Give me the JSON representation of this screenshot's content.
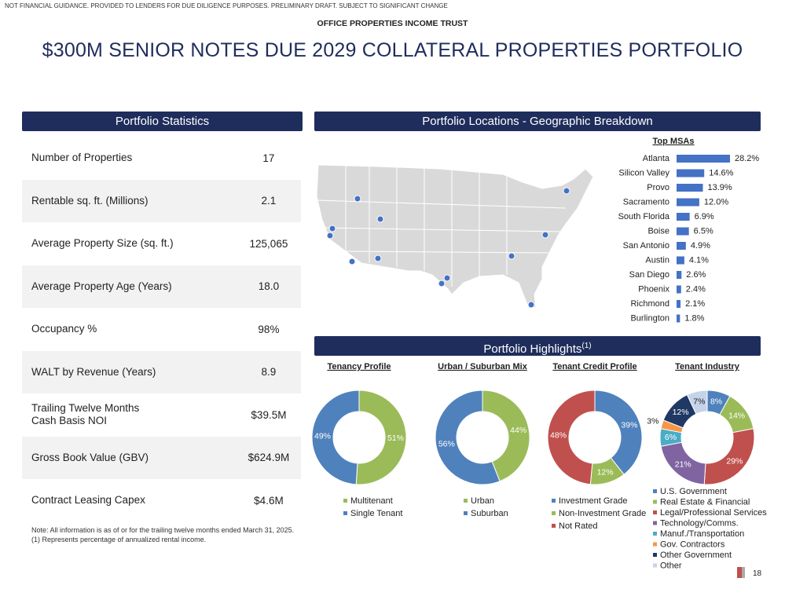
{
  "header": {
    "disclaimer": "NOT FINANCIAL GUIDANCE. PROVIDED TO LENDERS FOR DUE DILIGENCE PURPOSES. PRELIMINARY DRAFT. SUBJECT TO SIGNIFICANT CHANGE",
    "company": "OFFICE PROPERTIES INCOME TRUST",
    "title": "$300M SENIOR NOTES DUE 2029 COLLATERAL PROPERTIES PORTFOLIO"
  },
  "stats": {
    "title": "Portfolio Statistics",
    "rows": [
      [
        "Number of Properties",
        "17"
      ],
      [
        "Rentable sq. ft. (Millions)",
        "2.1"
      ],
      [
        "Average Property Size (sq. ft.)",
        "125,065"
      ],
      [
        "Average Property Age (Years)",
        "18.0"
      ],
      [
        "Occupancy %",
        "98%"
      ],
      [
        "WALT by Revenue (Years)",
        "8.9"
      ],
      [
        "Trailing Twelve Months\nCash Basis NOI",
        "$39.5M"
      ],
      [
        "Gross Book Value (GBV)",
        "$624.9M"
      ],
      [
        "Contract Leasing Capex",
        "$4.6M"
      ]
    ]
  },
  "notes": [
    "Note:  All information is as of or for the trailing twelve months ended March 31, 2025.",
    "(1)     Represents percentage of annualized rental income."
  ],
  "locations_title": "Portfolio Locations - Geographic Breakdown",
  "highlights_title": "Portfolio Highlights",
  "highlights_sup": "(1)",
  "page_number": "18",
  "chart_data": [
    {
      "type": "bar",
      "orientation": "horizontal",
      "title": "Top MSAs",
      "color": "#4472c4",
      "categories": [
        "Atlanta",
        "Silicon Valley",
        "Provo",
        "Sacramento",
        "South Florida",
        "Boise",
        "San Antonio",
        "Austin",
        "San Diego",
        "Phoenix",
        "Richmond",
        "Burlington"
      ],
      "values": [
        28.2,
        14.6,
        13.9,
        12.0,
        6.9,
        6.5,
        4.9,
        4.1,
        2.6,
        2.4,
        2.1,
        1.8
      ],
      "value_labels": [
        "28.2%",
        "14.6%",
        "13.9%",
        "12.0%",
        "6.9%",
        "6.5%",
        "4.9%",
        "4.1%",
        "2.6%",
        "2.4%",
        "2.1%",
        "1.8%"
      ]
    },
    {
      "type": "pie",
      "donut": true,
      "title": "Tenancy Profile",
      "categories": [
        "Multitenant",
        "Single Tenant"
      ],
      "values": [
        51,
        49
      ],
      "value_labels": [
        "51%",
        "49%"
      ],
      "colors": [
        "#9bbb59",
        "#4f81bd"
      ]
    },
    {
      "type": "pie",
      "donut": true,
      "title": "Urban / Suburban Mix",
      "categories": [
        "Urban",
        "Suburban"
      ],
      "values": [
        44,
        56
      ],
      "value_labels": [
        "44%",
        "56%"
      ],
      "colors": [
        "#9bbb59",
        "#4f81bd"
      ]
    },
    {
      "type": "pie",
      "donut": true,
      "title": "Tenant Credit Profile",
      "categories": [
        "Investment Grade",
        "Non-Investment Grade",
        "Not Rated"
      ],
      "values": [
        39,
        12,
        48
      ],
      "value_labels": [
        "39%",
        "12%",
        "48%"
      ],
      "colors": [
        "#4f81bd",
        "#9bbb59",
        "#c0504d"
      ]
    },
    {
      "type": "pie",
      "donut": true,
      "title": "Tenant Industry",
      "categories": [
        "U.S. Government",
        "Real Estate & Financial",
        "Legal/Professional Services",
        "Technology/Comms.",
        "Manuf./Transportation",
        "Gov. Contractors",
        "Other Government",
        "Other"
      ],
      "values": [
        8,
        14,
        29,
        21,
        6,
        3,
        12,
        7
      ],
      "value_labels": [
        "8%",
        "14%",
        "29%",
        "21%",
        "6%",
        "3%",
        "12%",
        "7%"
      ],
      "colors": [
        "#4f81bd",
        "#9bbb59",
        "#c0504d",
        "#8064a2",
        "#4bacc6",
        "#f79646",
        "#1f3864",
        "#c5d3ea"
      ]
    }
  ]
}
